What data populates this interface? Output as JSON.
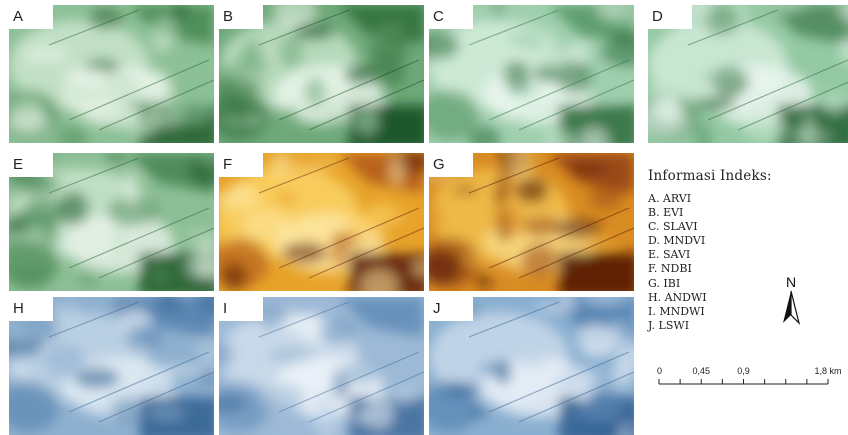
{
  "panels": [
    {
      "label": "A",
      "palette": [
        "#e9f4ea",
        "#c2e0c6",
        "#8cc096",
        "#4f8f5a",
        "#1e5c2a"
      ]
    },
    {
      "label": "B",
      "palette": [
        "#eef7ef",
        "#b6d9bb",
        "#6fa97a",
        "#34743f",
        "#0f4a1e"
      ]
    },
    {
      "label": "C",
      "palette": [
        "#eef8f2",
        "#cde9d6",
        "#9fcfae",
        "#5f9e6e",
        "#2a6b38"
      ]
    },
    {
      "label": "D",
      "palette": [
        "#eef8f2",
        "#c9e6d2",
        "#94c9a3",
        "#548f62",
        "#225f30"
      ]
    },
    {
      "label": "E",
      "palette": [
        "#e8f3ea",
        "#c0dfc5",
        "#8dbf96",
        "#4f8c5a",
        "#1f5a2b"
      ]
    },
    {
      "label": "F",
      "palette": [
        "#fde9a6",
        "#f8cc5c",
        "#e7a32a",
        "#b8621a",
        "#5a1a0a"
      ]
    },
    {
      "label": "G",
      "palette": [
        "#f9dc8a",
        "#eeb947",
        "#d98c22",
        "#9a4a14",
        "#4a1205"
      ]
    },
    {
      "label": "H",
      "palette": [
        "#e4edf5",
        "#b9cfe2",
        "#8eb0cf",
        "#5c87b2",
        "#2f5f8f"
      ]
    },
    {
      "label": "I",
      "palette": [
        "#f1f5fa",
        "#c9d9e9",
        "#9cb9d6",
        "#6891bb",
        "#3d6a9a"
      ]
    },
    {
      "label": "J",
      "palette": [
        "#eef3f9",
        "#bfd3e6",
        "#8aafd0",
        "#5584b3",
        "#2a5b8c"
      ]
    }
  ],
  "legend": {
    "title": "Informasi Indeks:",
    "items": [
      "A. ARVI",
      "B. EVI",
      "C. SLAVI",
      "D. MNDVI",
      "E. SAVI",
      "F. NDBI",
      "G. IBI",
      "H. ANDWI",
      "I. MNDWI",
      "J. LSWI"
    ]
  },
  "north_arrow": {
    "label": "N"
  },
  "scale_bar": {
    "labels": [
      "0",
      "0,45",
      "0,9",
      "1,8 km"
    ],
    "values_km": [
      0,
      0.45,
      0.9,
      1.8
    ]
  }
}
